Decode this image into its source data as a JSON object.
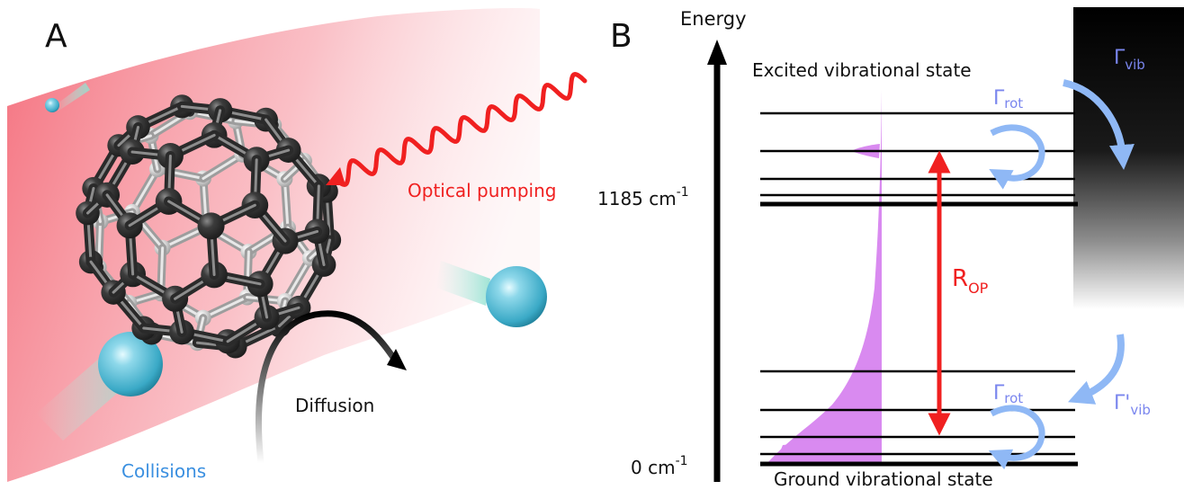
{
  "panel_a": {
    "label": "A",
    "optical_pumping": "Optical pumping",
    "diffusion": "Diffusion",
    "collisions": "Collisions"
  },
  "panel_b": {
    "label": "B",
    "axis_title": "Energy",
    "excited_state": "Excited vibrational state",
    "ground_state": "Ground vibrational state",
    "tick_upper": {
      "value": "1185 cm",
      "exponent": "-1"
    },
    "tick_lower": {
      "value": "0 cm",
      "exponent": "-1"
    },
    "rop": {
      "main": "R",
      "sub": "OP"
    },
    "gamma_rot_upper": {
      "main": "Γ",
      "sub": "rot"
    },
    "gamma_rot_lower": {
      "main": "Γ",
      "sub": "rot"
    },
    "gamma_vib": {
      "main": "Γ",
      "sub": "vib"
    },
    "gamma_vib_prime": {
      "main": "Γ'",
      "sub": "vib"
    }
  },
  "colors": {
    "laser_red": "#f02020",
    "collision_blue": "#3a8fe0",
    "gamma_blue": "#7a86ee",
    "arrow_light_blue": "#8fb8f5",
    "population_violet": "#d98af0",
    "ball_dark": "#3a3a3a",
    "ball_light": "#d6d6d6",
    "gas_cyan": "#5fc3dc"
  }
}
